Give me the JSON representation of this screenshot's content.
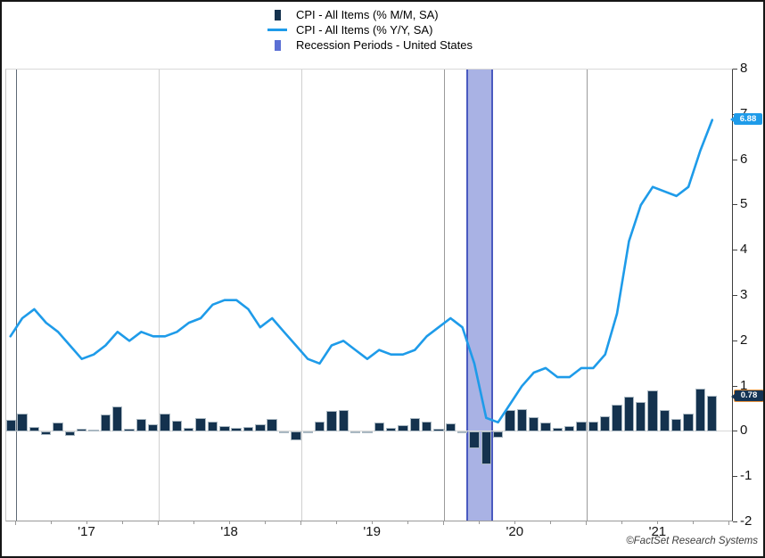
{
  "legend": {
    "position": "top-center"
  },
  "callouts": {
    "yoy_last": "6.88",
    "mom_last": "0.78"
  },
  "footer": "©FactSet Research Systems",
  "axes": {
    "y_side": "right",
    "y_ticks": [
      8,
      7,
      6,
      5,
      4,
      3,
      2,
      1,
      0,
      -1,
      -2
    ],
    "x_tick_labels": [
      "'17",
      "'18",
      "'19",
      "'20",
      "'21"
    ]
  },
  "chart_data": {
    "type": "mixed",
    "title": "",
    "xlabel": "",
    "ylabel": "",
    "ylim": [
      -2,
      8
    ],
    "grid": "vertical-year-gridlines",
    "legend_position": "top-center",
    "x_months": {
      "start": "2016-12",
      "end": "2021-11",
      "count": 60
    },
    "x_tick_labels": [
      "'17",
      "'18",
      "'19",
      "'20",
      "'21"
    ],
    "y_ticks": [
      8,
      7,
      6,
      5,
      4,
      3,
      2,
      1,
      0,
      -1,
      -2
    ],
    "gridline_colors": [
      "#5f6a76",
      "#cfcfcf",
      "#cfcfcf",
      "#9a9a9a",
      "#9a9a9a"
    ],
    "series": [
      {
        "name": "CPI - All Items (% M/M, SA)",
        "type": "bar",
        "color": "#14324e",
        "last_label": "0.78",
        "values": [
          0.25,
          0.4,
          0.1,
          -0.07,
          0.2,
          -0.1,
          0.05,
          0.03,
          0.37,
          0.55,
          0.05,
          0.28,
          0.15,
          0.4,
          0.24,
          0.07,
          0.3,
          0.22,
          0.12,
          0.08,
          0.1,
          0.15,
          0.28,
          -0.03,
          -0.19,
          -0.03,
          0.21,
          0.45,
          0.47,
          -0.03,
          -0.03,
          0.2,
          0.07,
          0.13,
          0.3,
          0.22,
          0.05,
          0.17,
          -0.02,
          -0.37,
          -0.73,
          -0.14,
          0.47,
          0.49,
          0.31,
          0.2,
          0.07,
          0.12,
          0.22,
          0.22,
          0.33,
          0.6,
          0.76,
          0.64,
          0.91,
          0.47,
          0.27,
          0.4,
          0.95,
          0.78
        ]
      },
      {
        "name": "CPI - All Items (% Y/Y, SA)",
        "type": "line",
        "color": "#1e9be9",
        "last_label": "6.88",
        "values": [
          2.1,
          2.5,
          2.7,
          2.4,
          2.2,
          1.9,
          1.6,
          1.7,
          1.9,
          2.2,
          2.0,
          2.2,
          2.1,
          2.1,
          2.2,
          2.4,
          2.5,
          2.8,
          2.9,
          2.9,
          2.7,
          2.3,
          2.5,
          2.2,
          1.9,
          1.6,
          1.5,
          1.9,
          2.0,
          1.8,
          1.6,
          1.8,
          1.7,
          1.7,
          1.8,
          2.1,
          2.3,
          2.5,
          2.3,
          1.5,
          0.3,
          0.2,
          0.6,
          1.0,
          1.3,
          1.4,
          1.2,
          1.2,
          1.4,
          1.4,
          1.7,
          2.6,
          4.2,
          5.0,
          5.4,
          5.3,
          5.2,
          5.4,
          6.2,
          6.88
        ]
      },
      {
        "name": "Recession Periods - United States",
        "type": "band",
        "color": "#a9b2e4",
        "border_color": "#4a5ac0",
        "legend_color": "#5b6fd4",
        "start_index": 38.3,
        "end_index": 40.55
      }
    ]
  }
}
